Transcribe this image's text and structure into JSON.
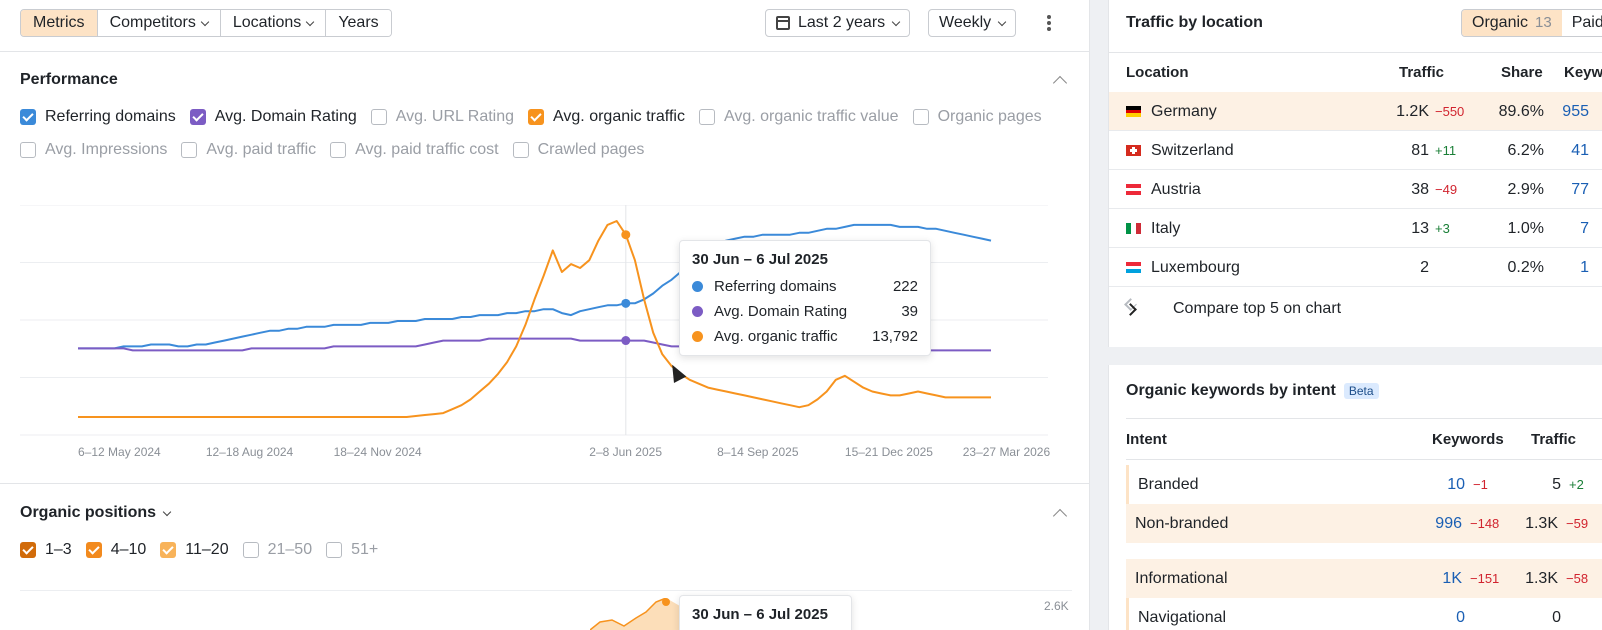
{
  "toolbar": {
    "tabs": [
      {
        "label": "Metrics",
        "active": true,
        "dropdown": false
      },
      {
        "label": "Competitors",
        "active": false,
        "dropdown": true
      },
      {
        "label": "Locations",
        "active": false,
        "dropdown": true
      },
      {
        "label": "Years",
        "active": false,
        "dropdown": false
      }
    ],
    "date_range": "Last 2 years",
    "interval": "Weekly"
  },
  "performance": {
    "title": "Performance",
    "metrics": [
      {
        "label": "Referring domains",
        "checked": true,
        "color": "#3b8ad9"
      },
      {
        "label": "Avg. Domain Rating",
        "checked": true,
        "color": "#7c5cc4"
      },
      {
        "label": "Avg. URL Rating",
        "checked": false,
        "color": ""
      },
      {
        "label": "Avg. organic traffic",
        "checked": true,
        "color": "#f7931e"
      },
      {
        "label": "Avg. organic traffic value",
        "checked": false,
        "color": ""
      },
      {
        "label": "Organic pages",
        "checked": false,
        "color": ""
      },
      {
        "label": "Avg. Impressions",
        "checked": false,
        "color": ""
      },
      {
        "label": "Avg. paid traffic",
        "checked": false,
        "color": ""
      },
      {
        "label": "Avg. paid traffic cost",
        "checked": false,
        "color": ""
      },
      {
        "label": "Crawled pages",
        "checked": false,
        "color": ""
      }
    ],
    "tooltip": {
      "title": "30 Jun – 6 Jul 2025",
      "rows": [
        {
          "label": "Referring domains",
          "value": "222",
          "color": "#3b8ad9"
        },
        {
          "label": "Avg. Domain Rating",
          "value": "39",
          "color": "#7c5cc4"
        },
        {
          "label": "Avg. organic traffic",
          "value": "13,792",
          "color": "#f7931e"
        }
      ]
    }
  },
  "chart_data": {
    "type": "line",
    "x_tick_labels": [
      "6–12 May 2024",
      "12–18 Aug 2024",
      "18–24 Nov 2024",
      "2–8 Jun 2025",
      "8–14 Sep 2025",
      "15–21 Dec 2025",
      "23–27 Mar 2026"
    ],
    "x_ticks_at_week": [
      0,
      14,
      28,
      56,
      70,
      84,
      98
    ],
    "hover_week": 60,
    "series": [
      {
        "name": "Referring domains",
        "color": "#3b8ad9",
        "norm_max": 1,
        "values": [
          0.35,
          0.35,
          0.35,
          0.35,
          0.35,
          0.36,
          0.36,
          0.36,
          0.37,
          0.37,
          0.37,
          0.36,
          0.36,
          0.37,
          0.37,
          0.38,
          0.39,
          0.4,
          0.41,
          0.42,
          0.43,
          0.44,
          0.44,
          0.45,
          0.45,
          0.46,
          0.46,
          0.46,
          0.47,
          0.47,
          0.47,
          0.47,
          0.48,
          0.48,
          0.48,
          0.49,
          0.49,
          0.49,
          0.5,
          0.5,
          0.5,
          0.5,
          0.51,
          0.51,
          0.52,
          0.52,
          0.52,
          0.53,
          0.53,
          0.54,
          0.54,
          0.55,
          0.55,
          0.53,
          0.52,
          0.54,
          0.55,
          0.56,
          0.57,
          0.57,
          0.58,
          0.58,
          0.6,
          0.63,
          0.67,
          0.7,
          0.74,
          0.78,
          0.82,
          0.86,
          0.88,
          0.9,
          0.91,
          0.92,
          0.92,
          0.93,
          0.93,
          0.93,
          0.93,
          0.94,
          0.94,
          0.95,
          0.96,
          0.96,
          0.97,
          0.98,
          0.98,
          0.98,
          0.98,
          0.98,
          0.97,
          0.97,
          0.97,
          0.96,
          0.96,
          0.95,
          0.94,
          0.93,
          0.92,
          0.91,
          0.9
        ]
      },
      {
        "name": "Avg. Domain Rating",
        "color": "#7c5cc4",
        "norm_max": 1,
        "values": [
          0.35,
          0.35,
          0.35,
          0.35,
          0.35,
          0.35,
          0.34,
          0.34,
          0.34,
          0.34,
          0.34,
          0.34,
          0.34,
          0.34,
          0.34,
          0.34,
          0.34,
          0.34,
          0.34,
          0.35,
          0.35,
          0.35,
          0.35,
          0.35,
          0.35,
          0.35,
          0.35,
          0.35,
          0.36,
          0.36,
          0.36,
          0.36,
          0.36,
          0.36,
          0.36,
          0.36,
          0.36,
          0.36,
          0.37,
          0.38,
          0.39,
          0.39,
          0.39,
          0.39,
          0.39,
          0.4,
          0.4,
          0.4,
          0.4,
          0.4,
          0.4,
          0.4,
          0.4,
          0.4,
          0.4,
          0.39,
          0.39,
          0.39,
          0.39,
          0.39,
          0.39,
          0.39,
          0.39,
          0.38,
          0.37,
          0.36,
          0.36,
          0.36,
          0.36,
          0.35,
          0.35,
          0.35,
          0.35,
          0.35,
          0.35,
          0.35,
          0.35,
          0.34,
          0.34,
          0.34,
          0.34,
          0.34,
          0.34,
          0.34,
          0.34,
          0.34,
          0.34,
          0.34,
          0.34,
          0.34,
          0.34,
          0.34,
          0.34,
          0.34,
          0.34,
          0.34,
          0.34,
          0.34,
          0.34,
          0.34,
          0.34
        ]
      },
      {
        "name": "Avg. organic traffic",
        "color": "#f7931e",
        "norm_max": 1,
        "values": [
          0,
          0,
          0,
          0,
          0,
          0,
          0,
          0,
          0,
          0,
          0,
          0,
          0,
          0,
          0,
          0,
          0,
          0,
          0,
          0,
          0,
          0,
          0,
          0,
          0,
          0,
          0,
          0,
          0,
          0,
          0,
          0,
          0,
          0,
          0,
          0,
          0,
          0.005,
          0.01,
          0.015,
          0.02,
          0.04,
          0.06,
          0.09,
          0.13,
          0.17,
          0.22,
          0.28,
          0.36,
          0.47,
          0.6,
          0.72,
          0.85,
          0.74,
          0.78,
          0.76,
          0.8,
          0.9,
          0.98,
          1,
          0.93,
          0.8,
          0.6,
          0.43,
          0.32,
          0.26,
          0.22,
          0.19,
          0.17,
          0.15,
          0.14,
          0.13,
          0.12,
          0.11,
          0.1,
          0.09,
          0.08,
          0.07,
          0.06,
          0.05,
          0.06,
          0.09,
          0.13,
          0.19,
          0.21,
          0.18,
          0.15,
          0.13,
          0.12,
          0.11,
          0.11,
          0.12,
          0.13,
          0.12,
          0.11,
          0.1,
          0.1,
          0.1,
          0.1,
          0.1,
          0.1
        ]
      }
    ]
  },
  "organic_positions": {
    "title": "Organic positions",
    "filters": [
      {
        "label": "1–3",
        "checked": true,
        "color": "#d16b0a"
      },
      {
        "label": "4–10",
        "checked": true,
        "color": "#f28a1e"
      },
      {
        "label": "11–20",
        "checked": true,
        "color": "#f8b35a"
      },
      {
        "label": "21–50",
        "checked": false,
        "color": ""
      },
      {
        "label": "51+",
        "checked": false,
        "color": ""
      }
    ],
    "y_max_label": "2.6K",
    "tooltip_title": "30 Jun – 6 Jul 2025"
  },
  "traffic_by_location": {
    "title": "Traffic by location",
    "toggle": [
      {
        "label": "Organic",
        "count": "13",
        "active": true
      },
      {
        "label": "Paid",
        "count": "",
        "active": false
      }
    ],
    "columns": [
      "Location",
      "Traffic",
      "Share",
      "Keywo"
    ],
    "rows": [
      {
        "country": "Germany",
        "traffic": "1.2K",
        "delta": "−550",
        "delta_dir": "neg",
        "share": "89.6%",
        "keywords": "955",
        "highlight": true
      },
      {
        "country": "Switzerland",
        "traffic": "81",
        "delta": "+11",
        "delta_dir": "pos",
        "share": "6.2%",
        "keywords": "41",
        "highlight": false
      },
      {
        "country": "Austria",
        "traffic": "38",
        "delta": "−49",
        "delta_dir": "neg",
        "share": "2.9%",
        "keywords": "77",
        "highlight": false
      },
      {
        "country": "Italy",
        "traffic": "13",
        "delta": "+3",
        "delta_dir": "pos",
        "share": "1.0%",
        "keywords": "7",
        "highlight": false
      },
      {
        "country": "Luxembourg",
        "traffic": "2",
        "delta": "",
        "delta_dir": "",
        "share": "0.2%",
        "keywords": "1",
        "highlight": false
      }
    ],
    "compare_label": "Compare top 5 on chart"
  },
  "keywords_by_intent": {
    "title": "Organic keywords by intent",
    "badge": "Beta",
    "columns": [
      "Intent",
      "Keywords",
      "Traffic"
    ],
    "rows": [
      {
        "intent": "Branded",
        "keywords": "10",
        "kw_delta": "−1",
        "kw_dir": "neg",
        "traffic": "5",
        "tr_delta": "+2",
        "tr_dir": "pos",
        "highlight": false
      },
      {
        "intent": "Non-branded",
        "keywords": "996",
        "kw_delta": "−148",
        "kw_dir": "neg",
        "traffic": "1.3K",
        "tr_delta": "−59",
        "tr_dir": "neg",
        "highlight": true
      },
      {
        "intent": "Informational",
        "keywords": "1K",
        "kw_delta": "−151",
        "kw_dir": "neg",
        "traffic": "1.3K",
        "tr_delta": "−58",
        "tr_dir": "neg",
        "highlight": true
      },
      {
        "intent": "Navigational",
        "keywords": "0",
        "kw_delta": "",
        "kw_dir": "",
        "traffic": "0",
        "tr_delta": "",
        "tr_dir": "",
        "highlight": false
      }
    ]
  }
}
